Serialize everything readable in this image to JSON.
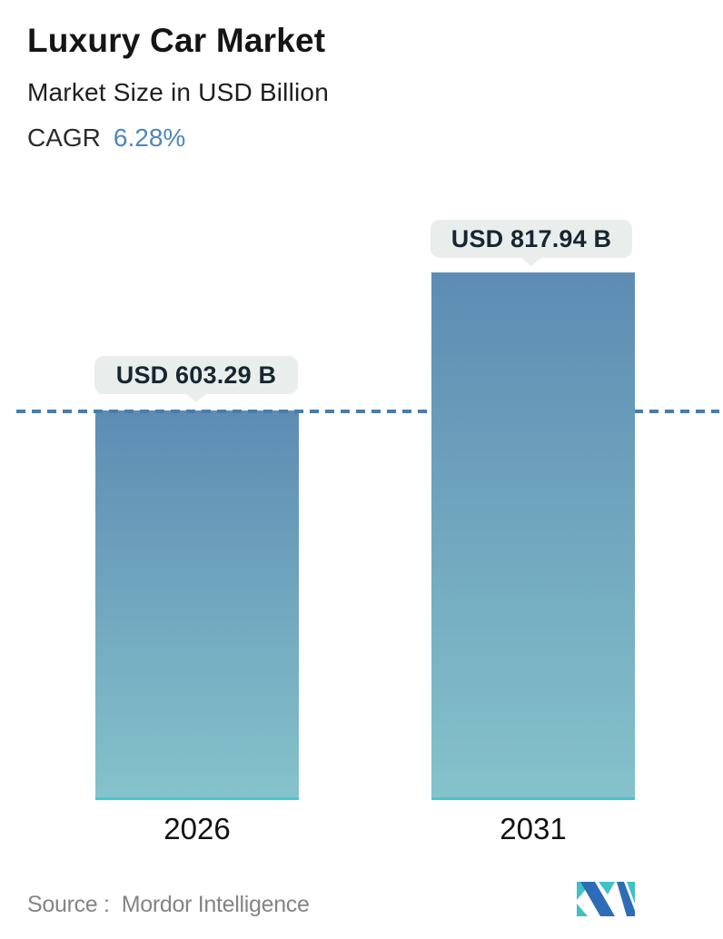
{
  "header": {
    "title": "Luxury Car Market",
    "subtitle": "Market Size in USD Billion",
    "cagr_label": "CAGR",
    "cagr_value": "6.28%"
  },
  "chart_data": {
    "type": "bar",
    "categories": [
      "2026",
      "2031"
    ],
    "values": [
      603.29,
      817.94
    ],
    "value_labels": [
      "USD 603.29 B",
      "USD 817.94 B"
    ],
    "title": "Luxury Car Market",
    "subtitle": "Market Size in USD Billion",
    "cagr": "6.28%",
    "unit": "USD Billion",
    "ylim": [
      0,
      880
    ],
    "reference_line": {
      "at_value": 603.29,
      "style": "dashed",
      "color": "#4a7da7"
    },
    "bar_gradient_top": "#5d8cb3",
    "bar_gradient_bottom": "#85c2cb",
    "bar_baseline_color": "#43c7d0",
    "grid": false,
    "legend": false
  },
  "footer": {
    "source_label": "Source :",
    "source_value": "Mordor Intelligence"
  },
  "colors": {
    "accent_blue": "#4d87ba",
    "tooltip_bg": "#e9eeed",
    "text_dark": "#151515",
    "text_gray": "#848484",
    "logo_teal": "#3fc1c5",
    "logo_blue": "#2e6db6"
  }
}
